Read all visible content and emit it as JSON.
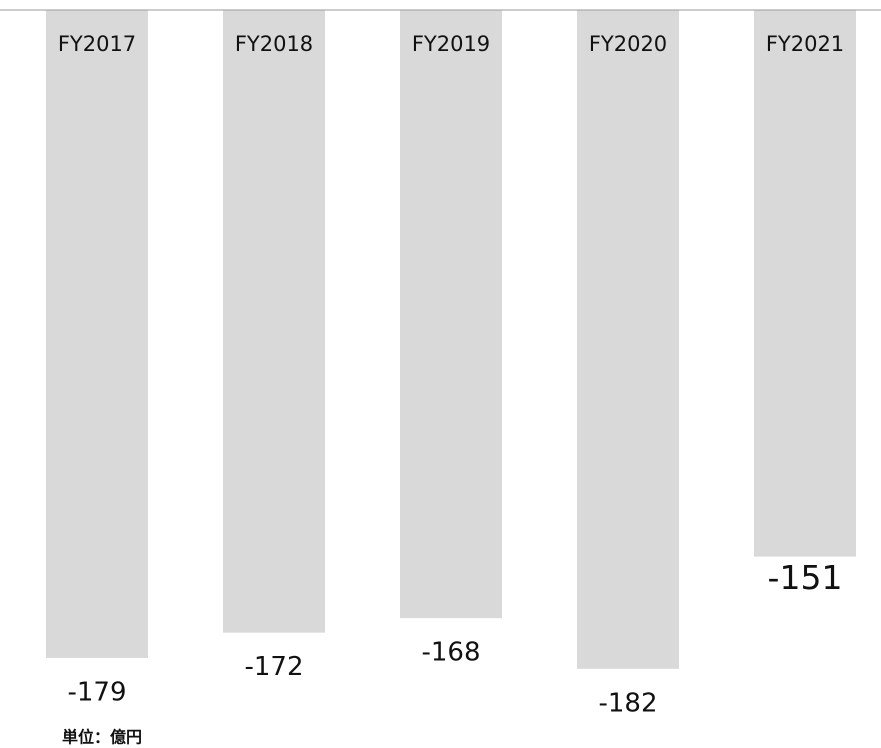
{
  "chart_data": {
    "type": "bar",
    "categories": [
      "FY2017",
      "FY2018",
      "FY2019",
      "FY2020",
      "FY2021"
    ],
    "values": [
      -179,
      -172,
      -168,
      -182,
      -151
    ],
    "color": "#d9d9d9",
    "unit_label": "単位：億円"
  }
}
